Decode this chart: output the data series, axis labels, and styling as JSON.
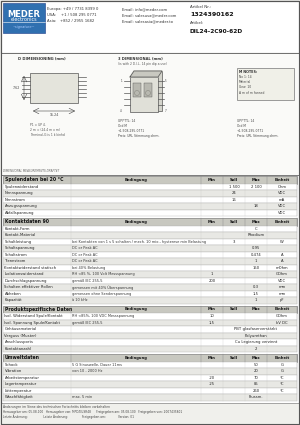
{
  "title": "DIL24-2C90-62D",
  "article_nr": "1324390162",
  "spulen_rows": [
    [
      "Spulenwiderstand",
      "",
      "",
      "1 500",
      "2 100",
      "Ohm"
    ],
    [
      "Nennspannung",
      "",
      "",
      "24",
      "",
      "VDC"
    ],
    [
      "Nennstrom",
      "",
      "",
      "16",
      "",
      "mA"
    ],
    [
      "Anzugsspannung",
      "",
      "",
      "",
      "18",
      "VDC"
    ],
    [
      "Abfallspannung",
      "",
      "",
      "",
      "",
      "VDC"
    ]
  ],
  "kontakt_rows": [
    [
      "Kontakt-Form",
      "",
      "",
      "",
      "C",
      ""
    ],
    [
      "Kontakt-Material",
      "",
      "",
      "",
      "Rhodium",
      ""
    ],
    [
      "Schaltleistung",
      "bei Kontakten von 1 s 5 schalten / mech. 10 mio., hysterese min Belastung",
      "",
      "3",
      "",
      "W"
    ],
    [
      "Schaltspannung",
      "DC or Peak AC",
      "",
      "",
      "0,95",
      ""
    ],
    [
      "Schaltstrom",
      "DC or Peak AC",
      "",
      "",
      "0,474",
      "A"
    ],
    [
      "Trennstrom",
      "DC or Peak AC",
      "",
      "",
      "1",
      "A"
    ],
    [
      "Kontaktwiderstand statisch",
      "bei 40% Belastung",
      "",
      "",
      "150",
      "mOhm"
    ],
    [
      "Isolationswiderstand",
      "RH <85 %, 100 Volt Messspannung",
      "1",
      "",
      "",
      "GOhm"
    ],
    [
      "Durchschlagspannung",
      "gemäß IEC 255-5",
      "200",
      "",
      "",
      "VDC"
    ],
    [
      "Schalten effektiver Rollen",
      "gemessen mit 40% Überspannung",
      "",
      "",
      "0,3",
      "mm"
    ],
    [
      "Abheben",
      "gemessen ohne Senderspannung",
      "",
      "",
      "1,5",
      "mm"
    ],
    [
      "Kapazität",
      "à 10 kHz",
      "",
      "",
      "1",
      "pF"
    ]
  ],
  "produkt_rows": [
    [
      "Isol. Widerstand Spule/Kontakt",
      "RH <85%, 100 VDC Messspannung",
      "10",
      "",
      "",
      "GOhm"
    ],
    [
      "Isol. Spannung Spule/Kontakt",
      "gemäß IEC 255-5",
      "1,5",
      "",
      "",
      "kV DC"
    ],
    [
      "Gehäusematerial",
      "",
      "",
      "",
      "PBT glasfaserverstärkt",
      ""
    ],
    [
      "Verguss (Muster)",
      "",
      "",
      "",
      "Polyurethan",
      ""
    ],
    [
      "Anschlussports",
      "",
      "",
      "",
      "Cu Legierung verzinnt",
      ""
    ],
    [
      "Kontaktanzahl",
      "",
      "",
      "",
      "2",
      ""
    ]
  ],
  "umwelt_rows": [
    [
      "Schock",
      "5 G Sinuswelle, Dauer 11ms",
      "",
      "",
      "50",
      "G"
    ],
    [
      "Vibration",
      "von 10 - 2000 Hz",
      "",
      "",
      "20",
      "G"
    ],
    [
      "Arbeitstemperatur",
      "",
      "-20",
      "",
      "70",
      "°C"
    ],
    [
      "Lagertemperatur",
      "",
      "-25",
      "",
      "85",
      "°C"
    ],
    [
      "Löttemperatur",
      "",
      "",
      "",
      "260",
      "°C"
    ],
    [
      "Waschfähigkeit",
      "max. 5 min",
      "",
      "",
      "Flussm.",
      ""
    ]
  ],
  "bg_color": "#f0f0ec",
  "page_bg": "#ffffff",
  "table_hdr_bg": "#c8c8c0",
  "row_bg1": "#ffffff",
  "row_bg2": "#e8e8e4",
  "meder_blue": "#3070b0",
  "border": "#888880"
}
